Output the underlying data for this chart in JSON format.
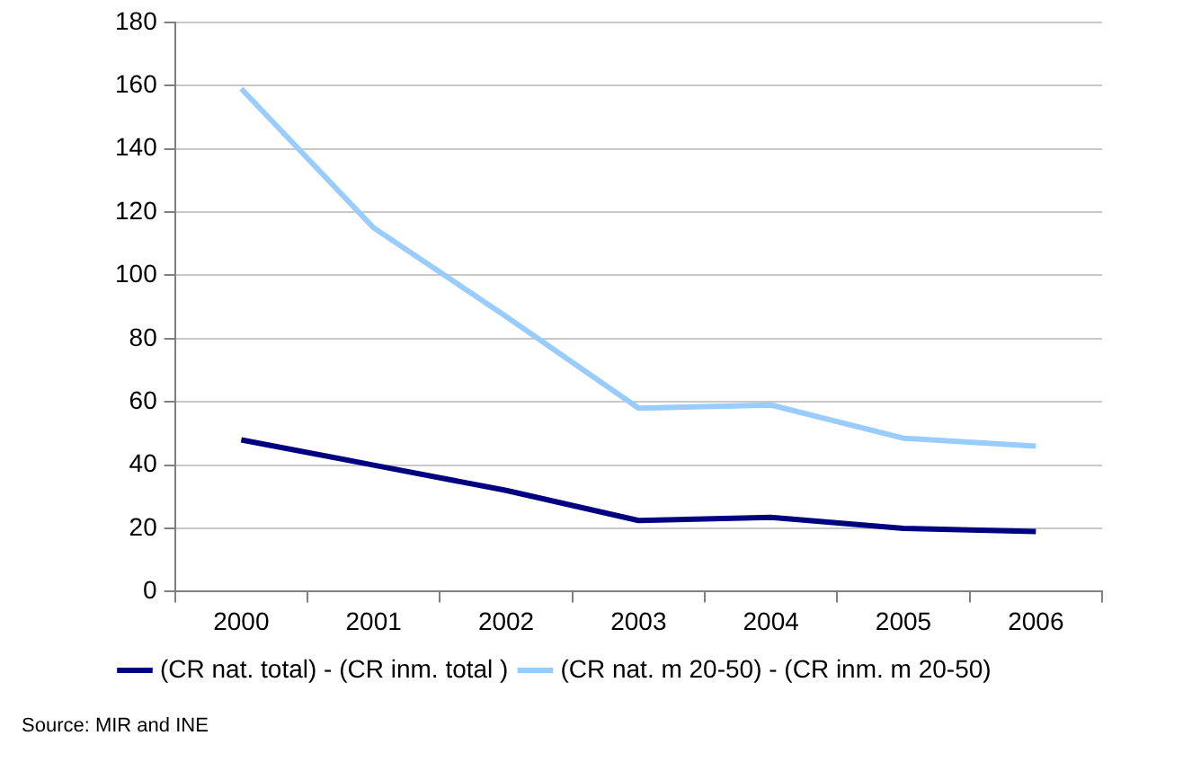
{
  "chart_data": {
    "type": "line",
    "categories": [
      "2000",
      "2001",
      "2002",
      "2003",
      "2004",
      "2005",
      "2006"
    ],
    "series": [
      {
        "name": "(CR nat. total) - (CR inm. total )",
        "color": "#000080",
        "values": [
          48,
          40,
          32,
          22.5,
          23.5,
          20,
          19
        ]
      },
      {
        "name": "(CR nat. m 20-50) - (CR inm. m 20-50)",
        "color": "#99ccff",
        "values": [
          159,
          115,
          87,
          58,
          59,
          48.5,
          46
        ]
      }
    ],
    "ylim": [
      0,
      180
    ],
    "yticks": [
      0,
      20,
      40,
      60,
      80,
      100,
      120,
      140,
      160,
      180
    ],
    "grid": "y",
    "legend": "bottom",
    "marker": "none",
    "line_style": "solid",
    "annotations": [
      "Source: MIR and INE"
    ]
  }
}
